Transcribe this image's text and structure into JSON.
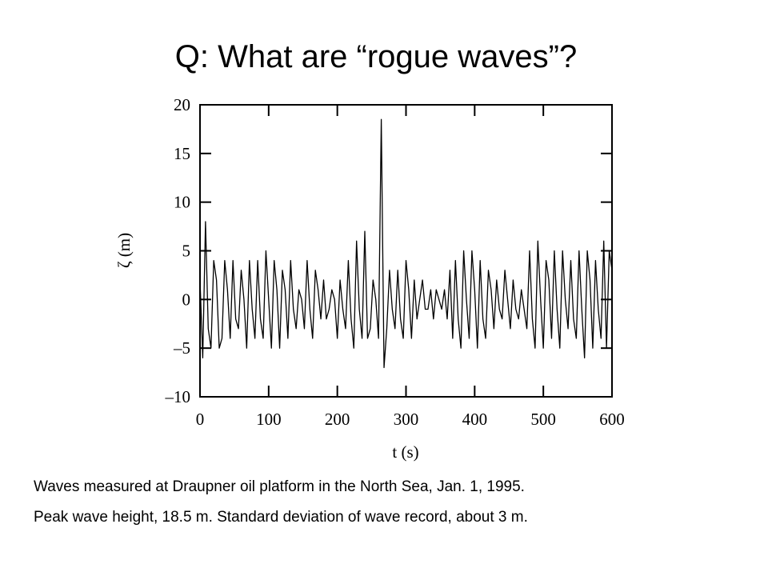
{
  "title": "Q: What are “rogue waves”?",
  "caption": [
    "Waves measured at Draupner oil platform in the North Sea, Jan. 1, 1995.",
    "Peak wave height, 18.5 m.  Standard deviation of wave record, about 3 m."
  ],
  "chart_data": {
    "type": "line",
    "xlabel": "t (s)",
    "ylabel": "ζ (m)",
    "xlim": [
      0,
      600
    ],
    "ylim": [
      -10,
      20
    ],
    "xticks": [
      0,
      100,
      200,
      300,
      400,
      500,
      600
    ],
    "yticks": [
      {
        "value": -10,
        "label": "–10"
      },
      {
        "value": -5,
        "label": "–5"
      },
      0,
      5,
      10,
      15,
      20
    ],
    "grid": false,
    "series": [
      {
        "color": "#000000",
        "x": [
          0,
          4,
          8,
          12,
          16,
          20,
          24,
          28,
          32,
          36,
          40,
          44,
          48,
          52,
          56,
          60,
          64,
          68,
          72,
          76,
          80,
          84,
          88,
          92,
          96,
          100,
          104,
          108,
          112,
          116,
          120,
          124,
          128,
          132,
          136,
          140,
          144,
          148,
          152,
          156,
          160,
          164,
          168,
          172,
          176,
          180,
          184,
          188,
          192,
          196,
          200,
          204,
          208,
          212,
          216,
          220,
          224,
          228,
          232,
          236,
          240,
          244,
          248,
          252,
          256,
          260,
          264,
          268,
          272,
          276,
          280,
          284,
          288,
          292,
          296,
          300,
          304,
          308,
          312,
          316,
          320,
          324,
          328,
          332,
          336,
          340,
          344,
          348,
          352,
          356,
          360,
          364,
          368,
          372,
          376,
          380,
          384,
          388,
          392,
          396,
          400,
          404,
          408,
          412,
          416,
          420,
          424,
          428,
          432,
          436,
          440,
          444,
          448,
          452,
          456,
          460,
          464,
          468,
          472,
          476,
          480,
          484,
          488,
          492,
          496,
          500,
          504,
          508,
          512,
          516,
          520,
          524,
          528,
          532,
          536,
          540,
          544,
          548,
          552,
          556,
          560,
          564,
          568,
          572,
          576,
          580,
          584,
          588,
          592,
          596,
          600
        ],
        "values": [
          2,
          -6,
          8,
          -3,
          -5,
          4,
          2,
          -5,
          -4,
          4,
          1,
          -4,
          4,
          -2,
          -3,
          3,
          0,
          -5,
          4,
          -1,
          -4,
          4,
          -2,
          -4,
          5,
          0,
          -5,
          4,
          1,
          -5,
          3,
          1,
          -4,
          4,
          -1,
          -3,
          1,
          0,
          -3,
          4,
          -1,
          -4,
          3,
          1,
          -2,
          2,
          -2,
          -1,
          1,
          0,
          -4,
          2,
          -1,
          -3,
          4,
          -2,
          -5,
          6,
          -1,
          -4,
          7,
          -4,
          -3,
          2,
          0,
          -4,
          18.5,
          -7,
          -3,
          3,
          -1,
          -3,
          3,
          -2,
          -4,
          4,
          1,
          -4,
          2,
          -2,
          0,
          2,
          -1,
          -1,
          1,
          -2,
          1,
          0,
          -1,
          1,
          -2,
          3,
          -4,
          4,
          -2,
          -5,
          5,
          0,
          -4,
          5,
          1,
          -5,
          4,
          -2,
          -4,
          3,
          1,
          -3,
          2,
          -1,
          -2,
          3,
          0,
          -3,
          2,
          -1,
          -2,
          1,
          -1,
          -3,
          5,
          -2,
          -5,
          6,
          0,
          -5,
          4,
          2,
          -4,
          5,
          -1,
          -5,
          5,
          0,
          -3,
          4,
          -2,
          -4,
          5,
          -1,
          -6,
          5,
          2,
          -5,
          4,
          -1,
          -4,
          6,
          -5,
          5,
          3
        ]
      }
    ]
  }
}
